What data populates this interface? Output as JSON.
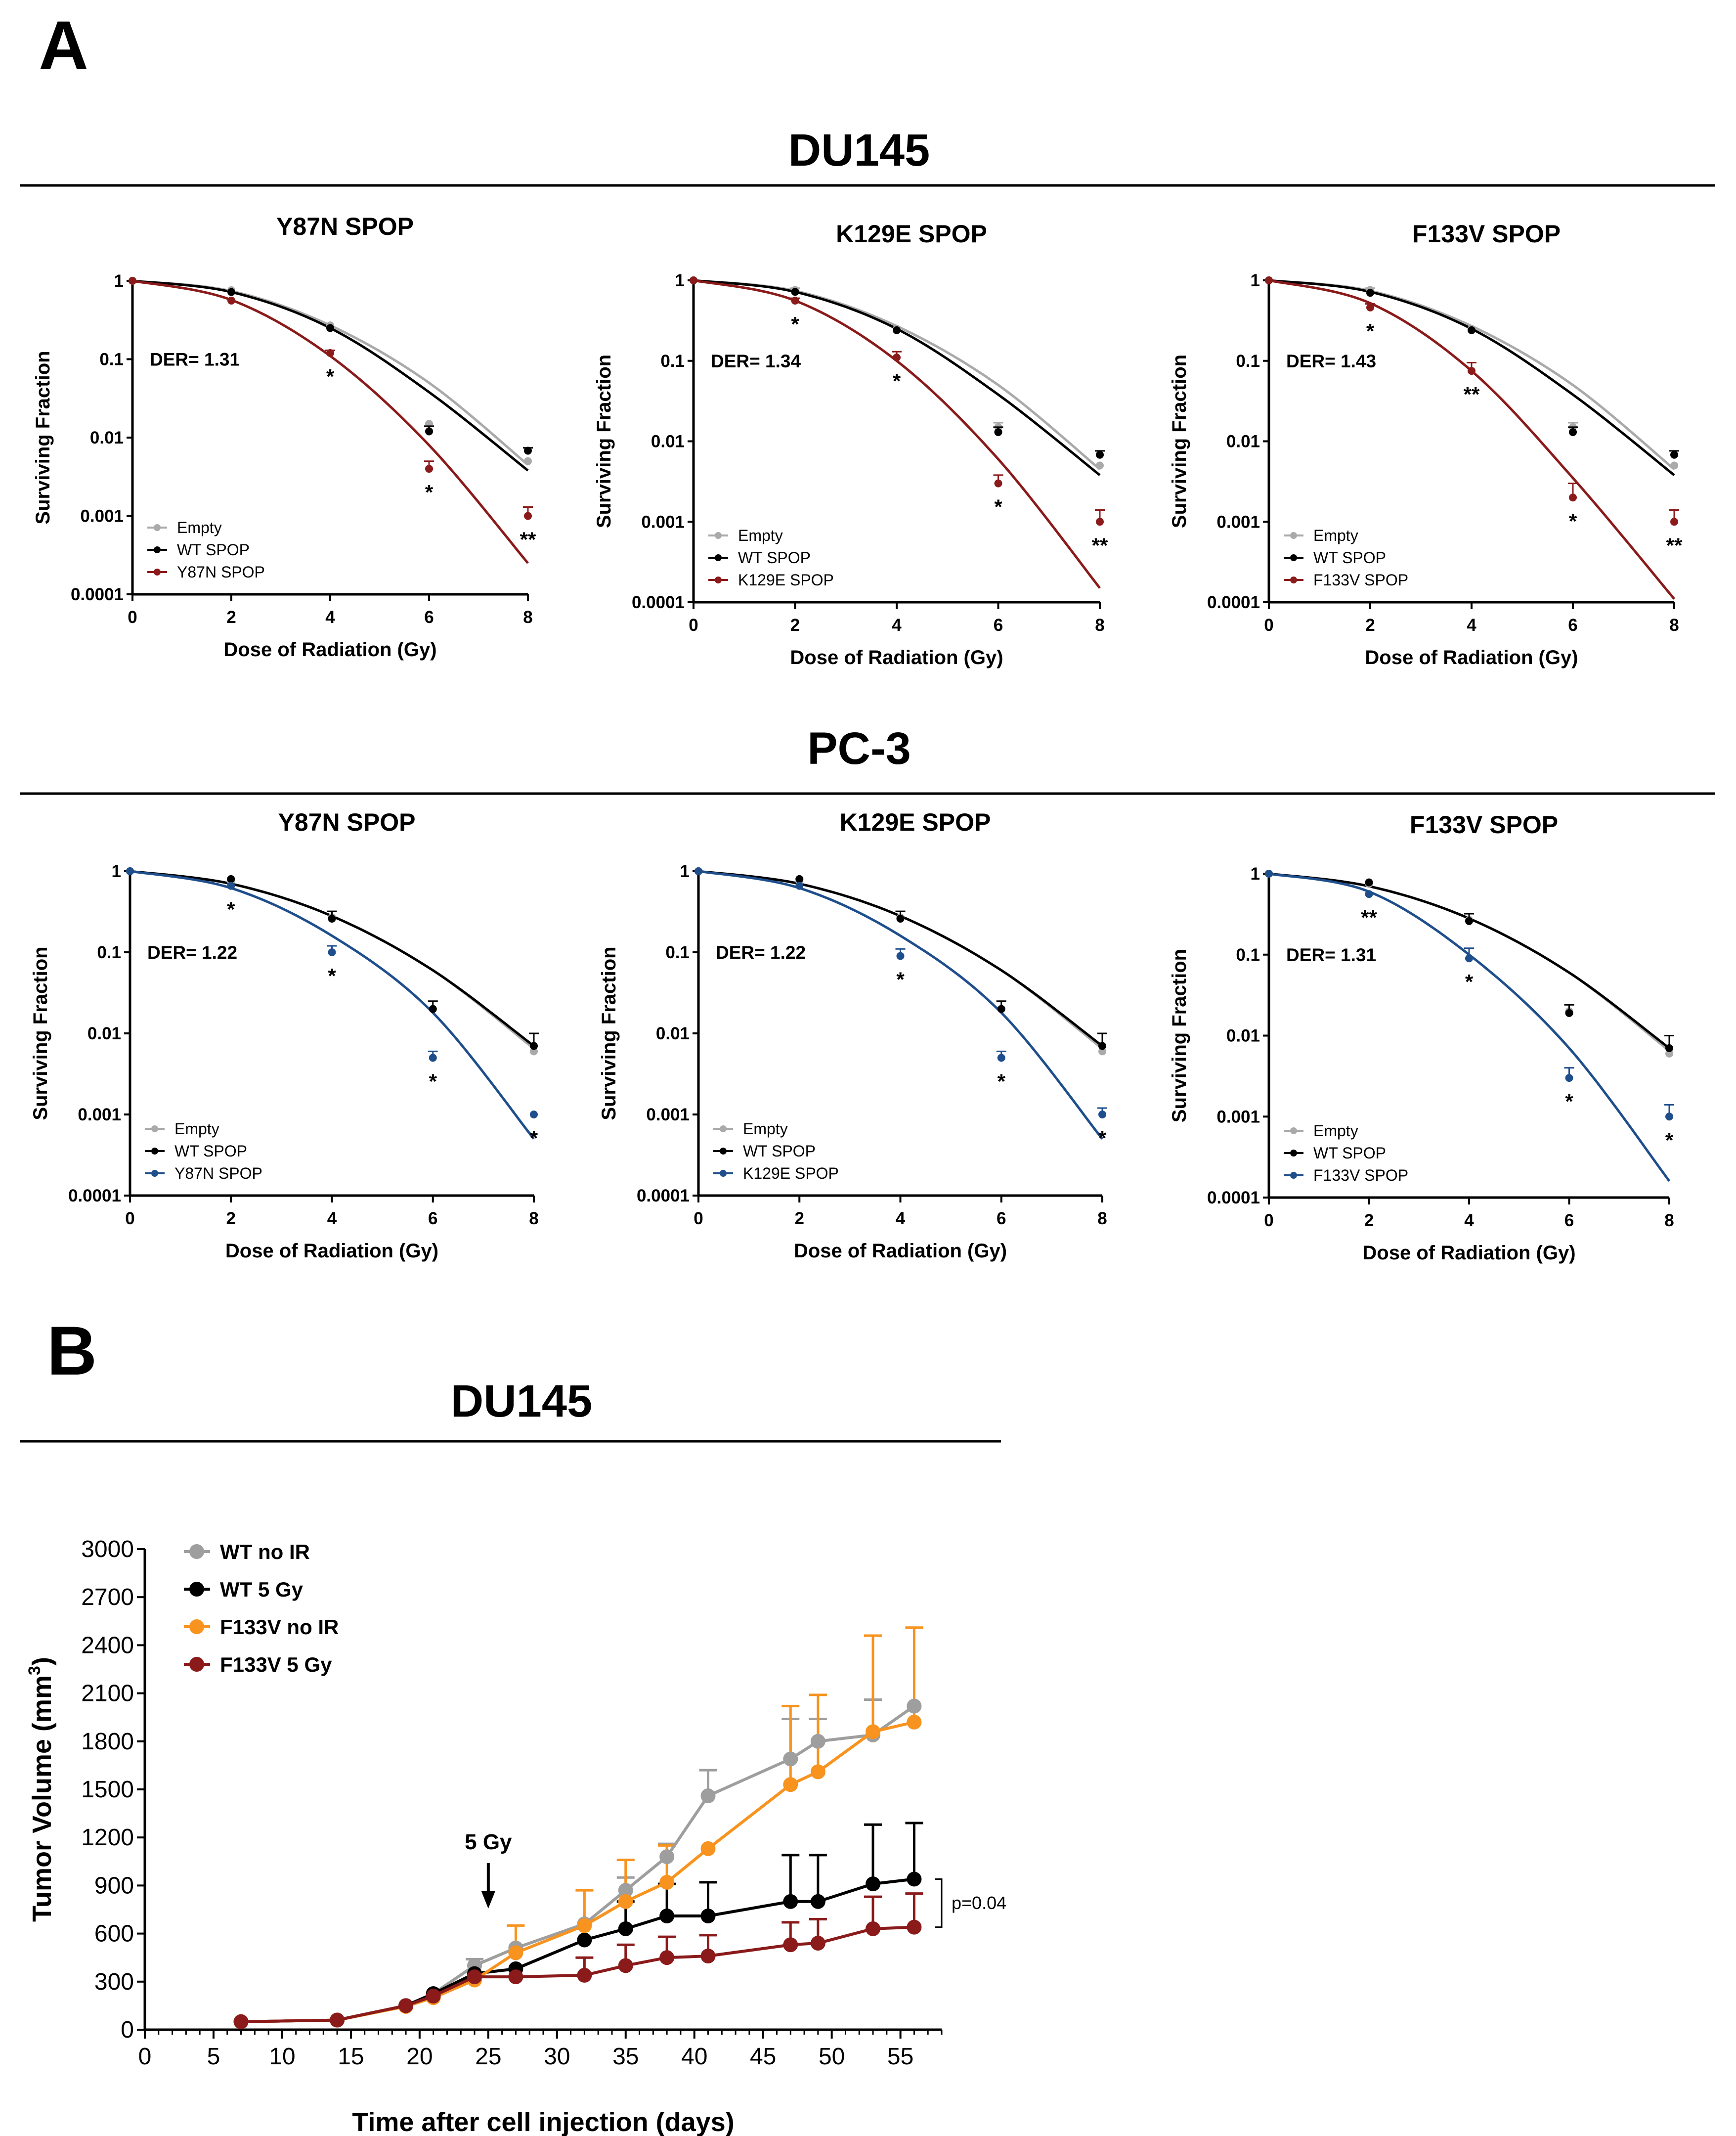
{
  "panel_labels": {
    "a": "A",
    "b": "B"
  },
  "sections": {
    "du145": "DU145",
    "pc3": "PC-3",
    "b_title": "DU145"
  },
  "chart_data": [
    {
      "id": "du145_y87n",
      "type": "line",
      "scale": "log",
      "title": "Y87N SPOP",
      "xlabel": "Dose of Radiation (Gy)",
      "ylabel": "Surviving Fraction",
      "x": [
        0,
        2,
        4,
        6,
        8
      ],
      "xlim": [
        0,
        8
      ],
      "ylim": [
        0.0001,
        1
      ],
      "yticks": [
        "0.0001",
        "0.001",
        "0.01",
        "0.1",
        "1"
      ],
      "der": "DER= 1.31",
      "series": [
        {
          "name": "Empty",
          "color": "#aaaaaa",
          "values": [
            1,
            0.76,
            0.27,
            0.015,
            0.005
          ],
          "err": [
            0,
            0,
            0,
            0,
            0
          ],
          "fit": [
            1,
            0.74,
            0.27,
            0.05,
            0.0045
          ]
        },
        {
          "name": "WT SPOP",
          "color": "#000000",
          "values": [
            1,
            0.72,
            0.25,
            0.012,
            0.0068
          ],
          "err": [
            0,
            0,
            0,
            0.002,
            0.0006
          ],
          "fit": [
            1,
            0.72,
            0.25,
            0.038,
            0.0038
          ]
        },
        {
          "name": "Y87N SPOP",
          "color": "#8b1a1a",
          "values": [
            1,
            0.56,
            0.12,
            0.004,
            0.001
          ],
          "err": [
            0,
            0,
            0.01,
            0.001,
            0.0003
          ],
          "fit": [
            1,
            0.57,
            0.11,
            0.008,
            0.00025
          ]
        }
      ],
      "sig": [
        {
          "x": 4,
          "text": "*"
        },
        {
          "x": 6,
          "text": "*"
        },
        {
          "x": 8,
          "text": "**"
        }
      ]
    },
    {
      "id": "du145_k129e",
      "type": "line",
      "scale": "log",
      "title": "K129E SPOP",
      "xlabel": "Dose of Radiation (Gy)",
      "ylabel": "Surviving Fraction",
      "x": [
        0,
        2,
        4,
        6,
        8
      ],
      "xlim": [
        0,
        8
      ],
      "ylim": [
        0.0001,
        1
      ],
      "yticks": [
        "0.0001",
        "0.001",
        "0.01",
        "0.1",
        "1"
      ],
      "der": "DER= 1.34",
      "series": [
        {
          "name": "Empty",
          "color": "#aaaaaa",
          "values": [
            1,
            0.76,
            0.25,
            0.015,
            0.005
          ],
          "err": [
            0,
            0.04,
            0,
            0.002,
            0
          ],
          "fit": [
            1,
            0.74,
            0.27,
            0.05,
            0.0045
          ]
        },
        {
          "name": "WT SPOP",
          "color": "#000000",
          "values": [
            1,
            0.72,
            0.24,
            0.013,
            0.0068
          ],
          "err": [
            0,
            0,
            0,
            0.002,
            0.0008
          ],
          "fit": [
            1,
            0.72,
            0.25,
            0.038,
            0.0038
          ]
        },
        {
          "name": "K129E SPOP",
          "color": "#8b1a1a",
          "values": [
            1,
            0.56,
            0.11,
            0.003,
            0.001
          ],
          "err": [
            0,
            0.04,
            0.02,
            0.0008,
            0.0004
          ],
          "fit": [
            1,
            0.56,
            0.1,
            0.006,
            0.00015
          ]
        }
      ],
      "sig": [
        {
          "x": 2,
          "text": "*"
        },
        {
          "x": 4,
          "text": "*"
        },
        {
          "x": 6,
          "text": "*"
        },
        {
          "x": 8,
          "text": "**"
        }
      ]
    },
    {
      "id": "du145_f133v",
      "type": "line",
      "scale": "log",
      "title": "F133V SPOP",
      "xlabel": "Dose of Radiation (Gy)",
      "ylabel": "Surviving Fraction",
      "x": [
        0,
        2,
        4,
        6,
        8
      ],
      "xlim": [
        0,
        8
      ],
      "ylim": [
        0.0001,
        1
      ],
      "yticks": [
        "0.0001",
        "0.001",
        "0.01",
        "0.1",
        "1"
      ],
      "der": "DER= 1.43",
      "series": [
        {
          "name": "Empty",
          "color": "#aaaaaa",
          "values": [
            1,
            0.76,
            0.25,
            0.015,
            0.005
          ],
          "err": [
            0,
            0.04,
            0,
            0.002,
            0
          ],
          "fit": [
            1,
            0.74,
            0.27,
            0.05,
            0.0045
          ]
        },
        {
          "name": "WT SPOP",
          "color": "#000000",
          "values": [
            1,
            0.7,
            0.24,
            0.013,
            0.0068
          ],
          "err": [
            0,
            0,
            0,
            0.002,
            0.0008
          ],
          "fit": [
            1,
            0.72,
            0.25,
            0.038,
            0.0038
          ]
        },
        {
          "name": "F133V SPOP",
          "color": "#8b1a1a",
          "values": [
            1,
            0.46,
            0.075,
            0.002,
            0.001
          ],
          "err": [
            0,
            0.05,
            0.02,
            0.001,
            0.0004
          ],
          "fit": [
            1,
            0.52,
            0.075,
            0.0035,
            0.00011
          ]
        }
      ],
      "sig": [
        {
          "x": 2,
          "text": "*"
        },
        {
          "x": 4,
          "text": "**"
        },
        {
          "x": 6,
          "text": "*"
        },
        {
          "x": 8,
          "text": "**"
        }
      ]
    },
    {
      "id": "pc3_y87n",
      "type": "line",
      "scale": "log",
      "title": "Y87N SPOP",
      "xlabel": "Dose of Radiation (Gy)",
      "ylabel": "Surviving Fraction",
      "x": [
        0,
        2,
        4,
        6,
        8
      ],
      "xlim": [
        0,
        8
      ],
      "ylim": [
        0.0001,
        1
      ],
      "yticks": [
        "0.0001",
        "0.001",
        "0.01",
        "0.1",
        "1"
      ],
      "der": "DER= 1.22",
      "series": [
        {
          "name": "Empty",
          "color": "#aaaaaa",
          "values": [
            1,
            0.75,
            0.27,
            0.02,
            0.006
          ],
          "err": [
            0,
            0,
            0,
            0,
            0
          ],
          "fit": [
            1,
            0.7,
            0.28,
            0.06,
            0.0065
          ]
        },
        {
          "name": "WT SPOP",
          "color": "#000000",
          "values": [
            1,
            0.8,
            0.26,
            0.02,
            0.007
          ],
          "err": [
            0,
            0,
            0.06,
            0.005,
            0.003
          ],
          "fit": [
            1,
            0.7,
            0.28,
            0.06,
            0.007
          ]
        },
        {
          "name": "Y87N SPOP",
          "color": "#1f4e8c",
          "values": [
            1,
            0.66,
            0.1,
            0.005,
            0.001
          ],
          "err": [
            0,
            0,
            0.02,
            0.001,
            0
          ],
          "fit": [
            1,
            0.62,
            0.16,
            0.018,
            0.0005
          ]
        }
      ],
      "sig": [
        {
          "x": 2,
          "text": "*"
        },
        {
          "x": 4,
          "text": "*"
        },
        {
          "x": 6,
          "text": "*"
        },
        {
          "x": 8,
          "text": "*"
        }
      ]
    },
    {
      "id": "pc3_k129e",
      "type": "line",
      "scale": "log",
      "title": "K129E SPOP",
      "xlabel": "Dose of Radiation (Gy)",
      "ylabel": "Surviving Fraction",
      "x": [
        0,
        2,
        4,
        6,
        8
      ],
      "xlim": [
        0,
        8
      ],
      "ylim": [
        0.0001,
        1
      ],
      "yticks": [
        "0.0001",
        "0.001",
        "0.01",
        "0.1",
        "1"
      ],
      "der": "DER= 1.22",
      "series": [
        {
          "name": "Empty",
          "color": "#aaaaaa",
          "values": [
            1,
            0.75,
            0.27,
            0.02,
            0.006
          ],
          "err": [
            0,
            0,
            0,
            0,
            0
          ],
          "fit": [
            1,
            0.7,
            0.28,
            0.06,
            0.0065
          ]
        },
        {
          "name": "WT SPOP",
          "color": "#000000",
          "values": [
            1,
            0.8,
            0.26,
            0.02,
            0.007
          ],
          "err": [
            0,
            0,
            0.06,
            0.005,
            0.003
          ],
          "fit": [
            1,
            0.7,
            0.28,
            0.06,
            0.007
          ]
        },
        {
          "name": "K129E SPOP",
          "color": "#1f4e8c",
          "values": [
            1,
            0.66,
            0.09,
            0.005,
            0.001
          ],
          "err": [
            0,
            0,
            0.02,
            0.001,
            0.0002
          ],
          "fit": [
            1,
            0.62,
            0.16,
            0.018,
            0.0005
          ]
        }
      ],
      "sig": [
        {
          "x": 4,
          "text": "*"
        },
        {
          "x": 6,
          "text": "*"
        },
        {
          "x": 8,
          "text": "*"
        }
      ]
    },
    {
      "id": "pc3_f133v",
      "type": "line",
      "scale": "log",
      "title": "F133V SPOP",
      "xlabel": "Dose of Radiation (Gy)",
      "ylabel": "Surviving Fraction",
      "x": [
        0,
        2,
        4,
        6,
        8
      ],
      "xlim": [
        0,
        8
      ],
      "ylim": [
        0.0001,
        1
      ],
      "yticks": [
        "0.0001",
        "0.001",
        "0.01",
        "0.1",
        "1"
      ],
      "der": "DER= 1.31",
      "series": [
        {
          "name": "Empty",
          "color": "#aaaaaa",
          "values": [
            1,
            0.75,
            0.27,
            0.02,
            0.006
          ],
          "err": [
            0,
            0,
            0,
            0,
            0
          ],
          "fit": [
            1,
            0.7,
            0.28,
            0.06,
            0.0065
          ]
        },
        {
          "name": "WT SPOP",
          "color": "#000000",
          "values": [
            1,
            0.78,
            0.26,
            0.019,
            0.007
          ],
          "err": [
            0,
            0,
            0.06,
            0.005,
            0.003
          ],
          "fit": [
            1,
            0.7,
            0.28,
            0.06,
            0.007
          ]
        },
        {
          "name": "F133V SPOP",
          "color": "#1f4e8c",
          "values": [
            1,
            0.56,
            0.09,
            0.003,
            0.001
          ],
          "err": [
            0,
            0,
            0.03,
            0.001,
            0.0004
          ],
          "fit": [
            1,
            0.6,
            0.1,
            0.007,
            0.00016
          ]
        }
      ],
      "sig": [
        {
          "x": 2,
          "text": "**"
        },
        {
          "x": 4,
          "text": "*"
        },
        {
          "x": 6,
          "text": "*"
        },
        {
          "x": 8,
          "text": "*"
        }
      ]
    },
    {
      "id": "tumor_volume",
      "type": "line",
      "scale": "linear",
      "title": "DU145",
      "xlabel": "Time after cell injection (days)",
      "ylabel": "Tumor Volume (mm",
      "ylabel_sup": "3",
      "ylabel_close": ")",
      "xlim": [
        0,
        58
      ],
      "ylim": [
        0,
        3000
      ],
      "xticks": [
        0,
        5,
        10,
        15,
        20,
        25,
        30,
        35,
        40,
        45,
        50,
        55
      ],
      "yticks": [
        0,
        300,
        600,
        900,
        1200,
        1500,
        1800,
        2100,
        2400,
        2700,
        3000
      ],
      "annotation": "5 Gy",
      "annotation_day": 25,
      "pvalue": "p=0.04",
      "series": [
        {
          "name": "WT no IR",
          "color": "#9e9e9e",
          "x": [
            7,
            14,
            19,
            21,
            24,
            27,
            32,
            35,
            38,
            41,
            47,
            49,
            53,
            56
          ],
          "values": [
            50,
            60,
            150,
            225,
            400,
            510,
            660,
            870,
            1080,
            1460,
            1690,
            1800,
            1840,
            2020
          ],
          "err": [
            0,
            0,
            0,
            0,
            40,
            0,
            0,
            80,
            80,
            160,
            250,
            140,
            220,
            0
          ]
        },
        {
          "name": "WT 5 Gy",
          "color": "#000000",
          "x": [
            7,
            14,
            19,
            21,
            24,
            27,
            32,
            35,
            38,
            41,
            47,
            49,
            53,
            56
          ],
          "values": [
            50,
            60,
            150,
            225,
            350,
            380,
            560,
            630,
            710,
            710,
            800,
            800,
            910,
            940
          ],
          "err": [
            0,
            0,
            0,
            0,
            0,
            0,
            0,
            170,
            200,
            210,
            290,
            290,
            370,
            350
          ]
        },
        {
          "name": "F133V no IR",
          "color": "#f7931e",
          "x": [
            7,
            14,
            19,
            21,
            24,
            27,
            32,
            35,
            38,
            41,
            47,
            49,
            53,
            56
          ],
          "values": [
            50,
            60,
            145,
            200,
            310,
            480,
            650,
            800,
            920,
            1130,
            1530,
            1610,
            1860,
            1920
          ],
          "err": [
            0,
            0,
            0,
            0,
            0,
            170,
            220,
            260,
            230,
            0,
            490,
            480,
            600,
            590
          ]
        },
        {
          "name": "F133V 5 Gy",
          "color": "#8b1a1a",
          "x": [
            7,
            14,
            19,
            21,
            24,
            27,
            32,
            35,
            38,
            41,
            47,
            49,
            53,
            56
          ],
          "values": [
            50,
            60,
            150,
            210,
            330,
            330,
            340,
            400,
            450,
            460,
            530,
            540,
            630,
            640
          ],
          "err": [
            0,
            0,
            0,
            0,
            0,
            0,
            110,
            130,
            130,
            130,
            140,
            150,
            200,
            210
          ]
        }
      ]
    }
  ]
}
